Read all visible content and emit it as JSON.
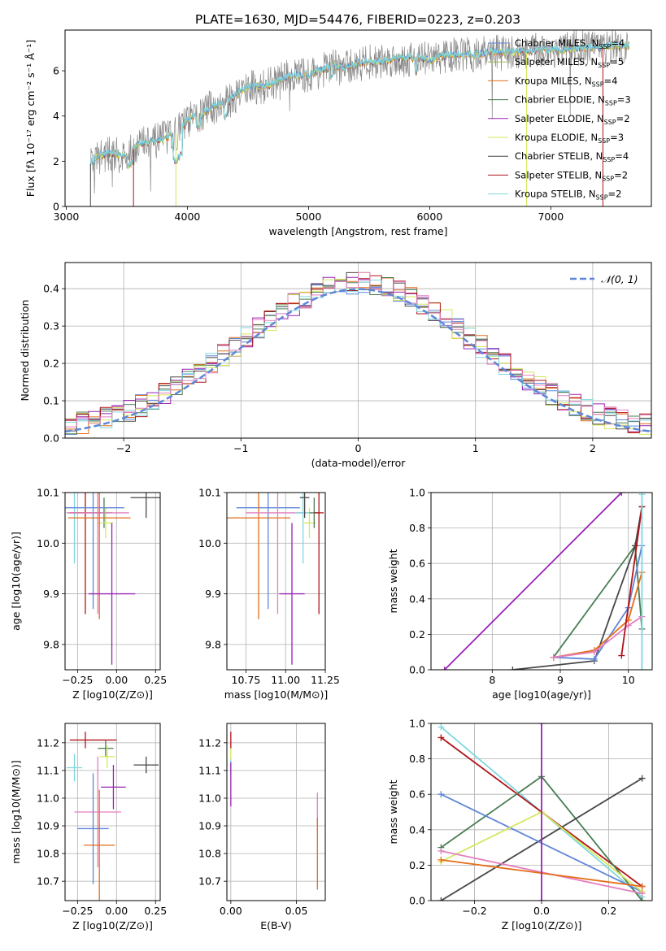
{
  "figure": {
    "title": "PLATE=1630, MJD=54476, FIBERID=0223, z=0.203"
  },
  "colors": {
    "chabrier_miles": "#5f86d8",
    "salpeter_miles": "#9bbc4d",
    "kroupa_miles": "#e46e1b",
    "chabrier_elodie": "#4a7d53",
    "salpeter_elodie": "#9a22b6",
    "kroupa_elodie": "#d4e85a",
    "chabrier_stelib": "#474747",
    "salpeter_stelib": "#b0141b",
    "kroupa_stelib": "#7fd7df",
    "pink": "#e47fbf",
    "normal": "#5f86d8",
    "grid": "#b0b0b0"
  },
  "chart_data": [
    {
      "id": "spectrum",
      "type": "line",
      "xlabel": "wavelength [Angstrom, rest frame]",
      "ylabel": "Flux [fλ 10⁻¹⁷ erg cm⁻² s⁻¹ Å⁻¹]",
      "xlim": [
        2990,
        7830
      ],
      "ylim": [
        0,
        7.8
      ],
      "xticks": [
        "3000",
        "4000",
        "5000",
        "6000",
        "7000"
      ],
      "yticks": [
        "0",
        "2",
        "4",
        "6"
      ],
      "x": [
        3200,
        3300,
        3400,
        3500,
        3600,
        3700,
        3800,
        3900,
        4000,
        4100,
        4200,
        4300,
        4400,
        4500,
        4600,
        4700,
        4800,
        4900,
        5000,
        5100,
        5200,
        5300,
        5400,
        5500,
        5600,
        5700,
        5800,
        5900,
        6000,
        6100,
        6200,
        6300,
        6400,
        6500,
        6600,
        6700,
        6800,
        6900,
        7000,
        7100,
        7200,
        7300,
        7400,
        7500,
        7600
      ],
      "y": [
        1.9,
        2.3,
        2.3,
        2.2,
        2.8,
        2.8,
        3.0,
        3.2,
        3.8,
        4.0,
        4.4,
        4.5,
        4.9,
        5.3,
        5.3,
        5.4,
        5.7,
        5.8,
        5.8,
        6.0,
        6.2,
        6.1,
        6.3,
        6.4,
        6.4,
        6.5,
        6.5,
        6.6,
        6.5,
        6.6,
        6.7,
        6.7,
        6.7,
        6.8,
        6.8,
        6.8,
        6.8,
        6.9,
        6.9,
        6.9,
        7.0,
        7.0,
        7.0,
        7.1,
        7.1
      ],
      "series": [
        {
          "name": "Chabrier MILES, N_SSP=4",
          "key": "chabrier_miles"
        },
        {
          "name": "Salpeter MILES, N_SSP=5",
          "key": "salpeter_miles"
        },
        {
          "name": "Kroupa MILES, N_SSP=4",
          "key": "kroupa_miles"
        },
        {
          "name": "Chabrier ELODIE, N_SSP=3",
          "key": "chabrier_elodie"
        },
        {
          "name": "Salpeter ELODIE, N_SSP=2",
          "key": "salpeter_elodie"
        },
        {
          "name": "Kroupa ELODIE, N_SSP=3",
          "key": "kroupa_elodie"
        },
        {
          "name": "Chabrier STELIB, N_SSP=4",
          "key": "chabrier_stelib"
        },
        {
          "name": "Salpeter STELIB, N_SSP=2",
          "key": "salpeter_stelib"
        },
        {
          "name": "Kroupa STELIB, N_SSP=2",
          "key": "kroupa_stelib"
        }
      ],
      "legend": "upper right"
    },
    {
      "id": "residuals",
      "type": "line",
      "xlabel": "(data-model)/error",
      "ylabel": "Normed distribution",
      "xlim": [
        -2.5,
        2.5
      ],
      "ylim": [
        0,
        0.47
      ],
      "xticks": [
        "−2",
        "−1",
        "0",
        "1",
        "2"
      ],
      "yticks": [
        "0.0",
        "0.1",
        "0.2",
        "0.3",
        "0.4"
      ],
      "legend_label": "𝒩(0, 1)",
      "bin_width": 0.1,
      "bin_start": -2.5,
      "colors": [
        "chabrier_miles",
        "kroupa_miles",
        "chabrier_elodie",
        "salpeter_elodie",
        "kroupa_elodie",
        "chabrier_stelib",
        "salpeter_stelib",
        "kroupa_stelib",
        "pink"
      ]
    },
    {
      "id": "age_vs_z",
      "type": "scatter",
      "xlabel": "Z [log10(Z/Z⊙)]",
      "ylabel": "age  [log10(age/yr)]",
      "xlim": [
        -0.33,
        0.28
      ],
      "ylim": [
        9.75,
        10.1
      ],
      "xticks": [
        "−0.25",
        "0.00",
        "0.25"
      ],
      "yticks": [
        "9.8",
        "9.9",
        "10.0",
        "10.1"
      ],
      "points": [
        {
          "key": "kroupa_stelib",
          "x": -0.27,
          "y": 10.06,
          "xerr": [
            0.05,
            0.05
          ],
          "yerr": [
            0.1,
            0.1
          ]
        },
        {
          "key": "salpeter_stelib",
          "x": -0.2,
          "y": 10.06,
          "xerr": [
            0.1,
            0.1
          ],
          "yerr": [
            0.2,
            0.2
          ]
        },
        {
          "key": "chabrier_elodie",
          "x": -0.08,
          "y": 10.06,
          "xerr": [
            0.05,
            0.05
          ],
          "yerr": [
            0.03,
            0.03
          ]
        },
        {
          "key": "kroupa_elodie",
          "x": -0.07,
          "y": 10.04,
          "xerr": [
            0.05,
            0.05
          ],
          "yerr": [
            0.03,
            0.03
          ]
        },
        {
          "key": "chabrier_stelib",
          "x": 0.19,
          "y": 10.09,
          "xerr": [
            0.1,
            0.1
          ],
          "yerr": [
            0.04,
            0.04
          ]
        },
        {
          "key": "chabrier_miles",
          "x": -0.15,
          "y": 10.07,
          "xerr": [
            0.2,
            0.2
          ],
          "yerr": [
            0.2,
            0.2
          ]
        },
        {
          "key": "pink",
          "x": -0.12,
          "y": 10.06,
          "xerr": [
            0.2,
            0.2
          ],
          "yerr": [
            0.2,
            0.2
          ]
        },
        {
          "key": "kroupa_miles",
          "x": -0.11,
          "y": 10.05,
          "xerr": [
            0.2,
            0.2
          ],
          "yerr": [
            0.2,
            0.2
          ]
        },
        {
          "key": "salpeter_elodie",
          "x": -0.03,
          "y": 9.9,
          "xerr": [
            0.15,
            0.15
          ],
          "yerr": [
            0.14,
            0.14
          ]
        }
      ]
    },
    {
      "id": "age_vs_mass",
      "type": "scatter",
      "xlabel": "mass [log10(M/M⊙)]",
      "ylabel": "",
      "xlim": [
        10.63,
        11.25
      ],
      "ylim": [
        9.75,
        10.1
      ],
      "xticks": [
        "10.75",
        "11.00",
        "11.25"
      ],
      "yticks": [
        "9.8",
        "9.9",
        "10.0",
        "10.1"
      ],
      "points": [
        {
          "key": "chabrier_miles",
          "x": 10.89,
          "y": 10.07,
          "xerr": [
            0.2,
            0.2
          ],
          "yerr": [
            0.2,
            0.2
          ]
        },
        {
          "key": "kroupa_miles",
          "x": 10.83,
          "y": 10.05,
          "xerr": [
            0.2,
            0.2
          ],
          "yerr": [
            0.2,
            0.2
          ]
        },
        {
          "key": "pink",
          "x": 10.95,
          "y": 10.06,
          "xerr": [
            0.2,
            0.2
          ],
          "yerr": [
            0.2,
            0.2
          ]
        },
        {
          "key": "salpeter_elodie",
          "x": 11.04,
          "y": 9.9,
          "xerr": [
            0.08,
            0.08
          ],
          "yerr": [
            0.14,
            0.14
          ]
        },
        {
          "key": "kroupa_stelib",
          "x": 11.11,
          "y": 10.06,
          "xerr": [
            0.05,
            0.05
          ],
          "yerr": [
            0.1,
            0.1
          ]
        },
        {
          "key": "chabrier_stelib",
          "x": 11.12,
          "y": 10.09,
          "xerr": [
            0.03,
            0.03
          ],
          "yerr": [
            0.04,
            0.04
          ]
        },
        {
          "key": "kroupa_elodie",
          "x": 11.15,
          "y": 10.04,
          "xerr": [
            0.04,
            0.04
          ],
          "yerr": [
            0.03,
            0.03
          ]
        },
        {
          "key": "chabrier_elodie",
          "x": 11.18,
          "y": 10.06,
          "xerr": [
            0.03,
            0.03
          ],
          "yerr": [
            0.03,
            0.03
          ]
        },
        {
          "key": "salpeter_stelib",
          "x": 11.21,
          "y": 10.06,
          "xerr": [
            0.03,
            0.03
          ],
          "yerr": [
            0.2,
            0.2
          ]
        }
      ]
    },
    {
      "id": "mass_weight_vs_age",
      "type": "line",
      "xlabel": "age  [log10(age/yr)]",
      "ylabel": "mass weight",
      "xlim": [
        7.1,
        10.35
      ],
      "ylim": [
        0,
        1.0
      ],
      "xticks": [
        "8",
        "9",
        "10"
      ],
      "yticks": [
        "0.0",
        "0.2",
        "0.4",
        "0.6",
        "0.8",
        "1.0"
      ],
      "series": [
        {
          "key": "salpeter_elodie",
          "x": [
            7.3,
            9.9
          ],
          "y": [
            0.0,
            1.0
          ]
        },
        {
          "key": "chabrier_elodie",
          "x": [
            8.9,
            10.1,
            10.2
          ],
          "y": [
            0.07,
            0.7,
            0.23
          ]
        },
        {
          "key": "chabrier_stelib",
          "x": [
            8.3,
            9.5,
            10.1,
            10.2
          ],
          "y": [
            0.0,
            0.05,
            0.7,
            0.92
          ]
        },
        {
          "key": "chabrier_miles",
          "x": [
            8.9,
            9.5,
            10.0,
            10.2
          ],
          "y": [
            0.07,
            0.06,
            0.35,
            0.7
          ]
        },
        {
          "key": "kroupa_miles",
          "x": [
            8.9,
            9.5,
            10.0,
            10.2
          ],
          "y": [
            0.07,
            0.11,
            0.28,
            0.55
          ]
        },
        {
          "key": "pink",
          "x": [
            8.9,
            9.5,
            10.0,
            10.2
          ],
          "y": [
            0.07,
            0.1,
            0.25,
            0.3
          ]
        },
        {
          "key": "salpeter_stelib",
          "x": [
            9.9,
            10.2
          ],
          "y": [
            0.08,
            0.92
          ]
        },
        {
          "key": "kroupa_stelib",
          "x": [
            10.2,
            10.2
          ],
          "y": [
            0.0,
            0.99
          ]
        }
      ]
    },
    {
      "id": "mass_vs_z",
      "type": "scatter",
      "xlabel": "Z [log10(Z/Z⊙)]",
      "ylabel": "mass [log10(M/M⊙)]",
      "xlim": [
        -0.33,
        0.28
      ],
      "ylim": [
        10.63,
        11.27
      ],
      "xticks": [
        "−0.25",
        "0.00",
        "0.25"
      ],
      "yticks": [
        "10.7",
        "10.8",
        "10.9",
        "11.0",
        "11.1",
        "11.2"
      ],
      "points": [
        {
          "key": "salpeter_stelib",
          "x": -0.2,
          "y": 11.21,
          "xerr": [
            0.1,
            0.2
          ],
          "yerr": [
            0.03,
            0.03
          ]
        },
        {
          "key": "chabrier_elodie",
          "x": -0.07,
          "y": 11.18,
          "xerr": [
            0.05,
            0.05
          ],
          "yerr": [
            0.03,
            0.03
          ]
        },
        {
          "key": "kroupa_elodie",
          "x": -0.06,
          "y": 11.15,
          "xerr": [
            0.05,
            0.05
          ],
          "yerr": [
            0.04,
            0.04
          ]
        },
        {
          "key": "chabrier_stelib",
          "x": 0.19,
          "y": 11.12,
          "xerr": [
            0.08,
            0.08
          ],
          "yerr": [
            0.03,
            0.03
          ]
        },
        {
          "key": "kroupa_stelib",
          "x": -0.27,
          "y": 11.11,
          "xerr": [
            0.05,
            0.05
          ],
          "yerr": [
            0.05,
            0.05
          ]
        },
        {
          "key": "salpeter_elodie",
          "x": -0.02,
          "y": 11.04,
          "xerr": [
            0.08,
            0.08
          ],
          "yerr": [
            0.08,
            0.08
          ]
        },
        {
          "key": "pink",
          "x": -0.12,
          "y": 10.95,
          "xerr": [
            0.15,
            0.15
          ],
          "yerr": [
            0.2,
            0.2
          ]
        },
        {
          "key": "chabrier_miles",
          "x": -0.15,
          "y": 10.89,
          "xerr": [
            0.1,
            0.1
          ],
          "yerr": [
            0.2,
            0.2
          ]
        },
        {
          "key": "kroupa_miles",
          "x": -0.11,
          "y": 10.83,
          "xerr": [
            0.1,
            0.1
          ],
          "yerr": [
            0.2,
            0.2
          ]
        }
      ]
    },
    {
      "id": "mass_vs_ebv",
      "type": "scatter",
      "xlabel": "E(B-V)",
      "ylabel": "",
      "xlim": [
        -0.003,
        0.072
      ],
      "ylim": [
        10.63,
        11.27
      ],
      "xticks": [
        "0.00",
        "0.05"
      ],
      "yticks": [
        "10.7",
        "10.8",
        "10.9",
        "11.0",
        "11.1",
        "11.2"
      ],
      "points": [
        {
          "key": "salpeter_stelib",
          "x": 0.0,
          "y": 11.21,
          "xerr": [
            0,
            0
          ],
          "yerr": [
            0.03,
            0.03
          ]
        },
        {
          "key": "kroupa_elodie",
          "x": 0.0,
          "y": 11.15,
          "xerr": [
            0,
            0
          ],
          "yerr": [
            0.03,
            0.03
          ]
        },
        {
          "key": "kroupa_stelib",
          "x": 0.0,
          "y": 11.11,
          "xerr": [
            0,
            0
          ],
          "yerr": [
            0.03,
            0.03
          ]
        },
        {
          "key": "salpeter_elodie",
          "x": 0.0,
          "y": 11.05,
          "xerr": [
            0,
            0
          ],
          "yerr": [
            0.08,
            0.08
          ]
        },
        {
          "key": "pink",
          "x": 0.066,
          "y": 10.95,
          "xerr": [
            0,
            0
          ],
          "yerr": [
            0.07,
            0.07
          ]
        },
        {
          "key": "kroupa_miles",
          "x": 0.066,
          "y": 10.8,
          "xerr": [
            0,
            0
          ],
          "yerr": [
            0.13,
            0.13
          ]
        }
      ]
    },
    {
      "id": "mass_weight_vs_z",
      "type": "line",
      "xlabel": "Z [log10(Z/Z⊙)]",
      "ylabel": "mass weight",
      "xlim": [
        -0.33,
        0.33
      ],
      "ylim": [
        0,
        1.0
      ],
      "xticks": [
        "−0.2",
        "0.0",
        "0.2"
      ],
      "yticks": [
        "0.0",
        "0.2",
        "0.4",
        "0.6",
        "0.8",
        "1.0"
      ],
      "series": [
        {
          "key": "kroupa_stelib",
          "x": [
            -0.3,
            0.3
          ],
          "y": [
            0.98,
            0.02
          ]
        },
        {
          "key": "salpeter_stelib",
          "x": [
            -0.3,
            0.3
          ],
          "y": [
            0.92,
            0.08
          ]
        },
        {
          "key": "chabrier_elodie",
          "x": [
            -0.3,
            0.0,
            0.3
          ],
          "y": [
            0.3,
            0.7,
            0.0
          ]
        },
        {
          "key": "chabrier_stelib",
          "x": [
            -0.3,
            0.3
          ],
          "y": [
            0.0,
            0.69
          ]
        },
        {
          "key": "chabrier_miles",
          "x": [
            -0.3,
            0.3
          ],
          "y": [
            0.6,
            0.05
          ]
        },
        {
          "key": "kroupa_elodie",
          "x": [
            -0.3,
            0.0,
            0.3
          ],
          "y": [
            0.22,
            0.5,
            0.05
          ]
        },
        {
          "key": "pink",
          "x": [
            -0.3,
            0.3
          ],
          "y": [
            0.28,
            0.04
          ]
        },
        {
          "key": "kroupa_miles",
          "x": [
            -0.3,
            0.3
          ],
          "y": [
            0.23,
            0.08
          ]
        },
        {
          "key": "salpeter_elodie",
          "x": [
            0.0,
            0.0
          ],
          "y": [
            0.0,
            1.0
          ]
        }
      ]
    }
  ]
}
